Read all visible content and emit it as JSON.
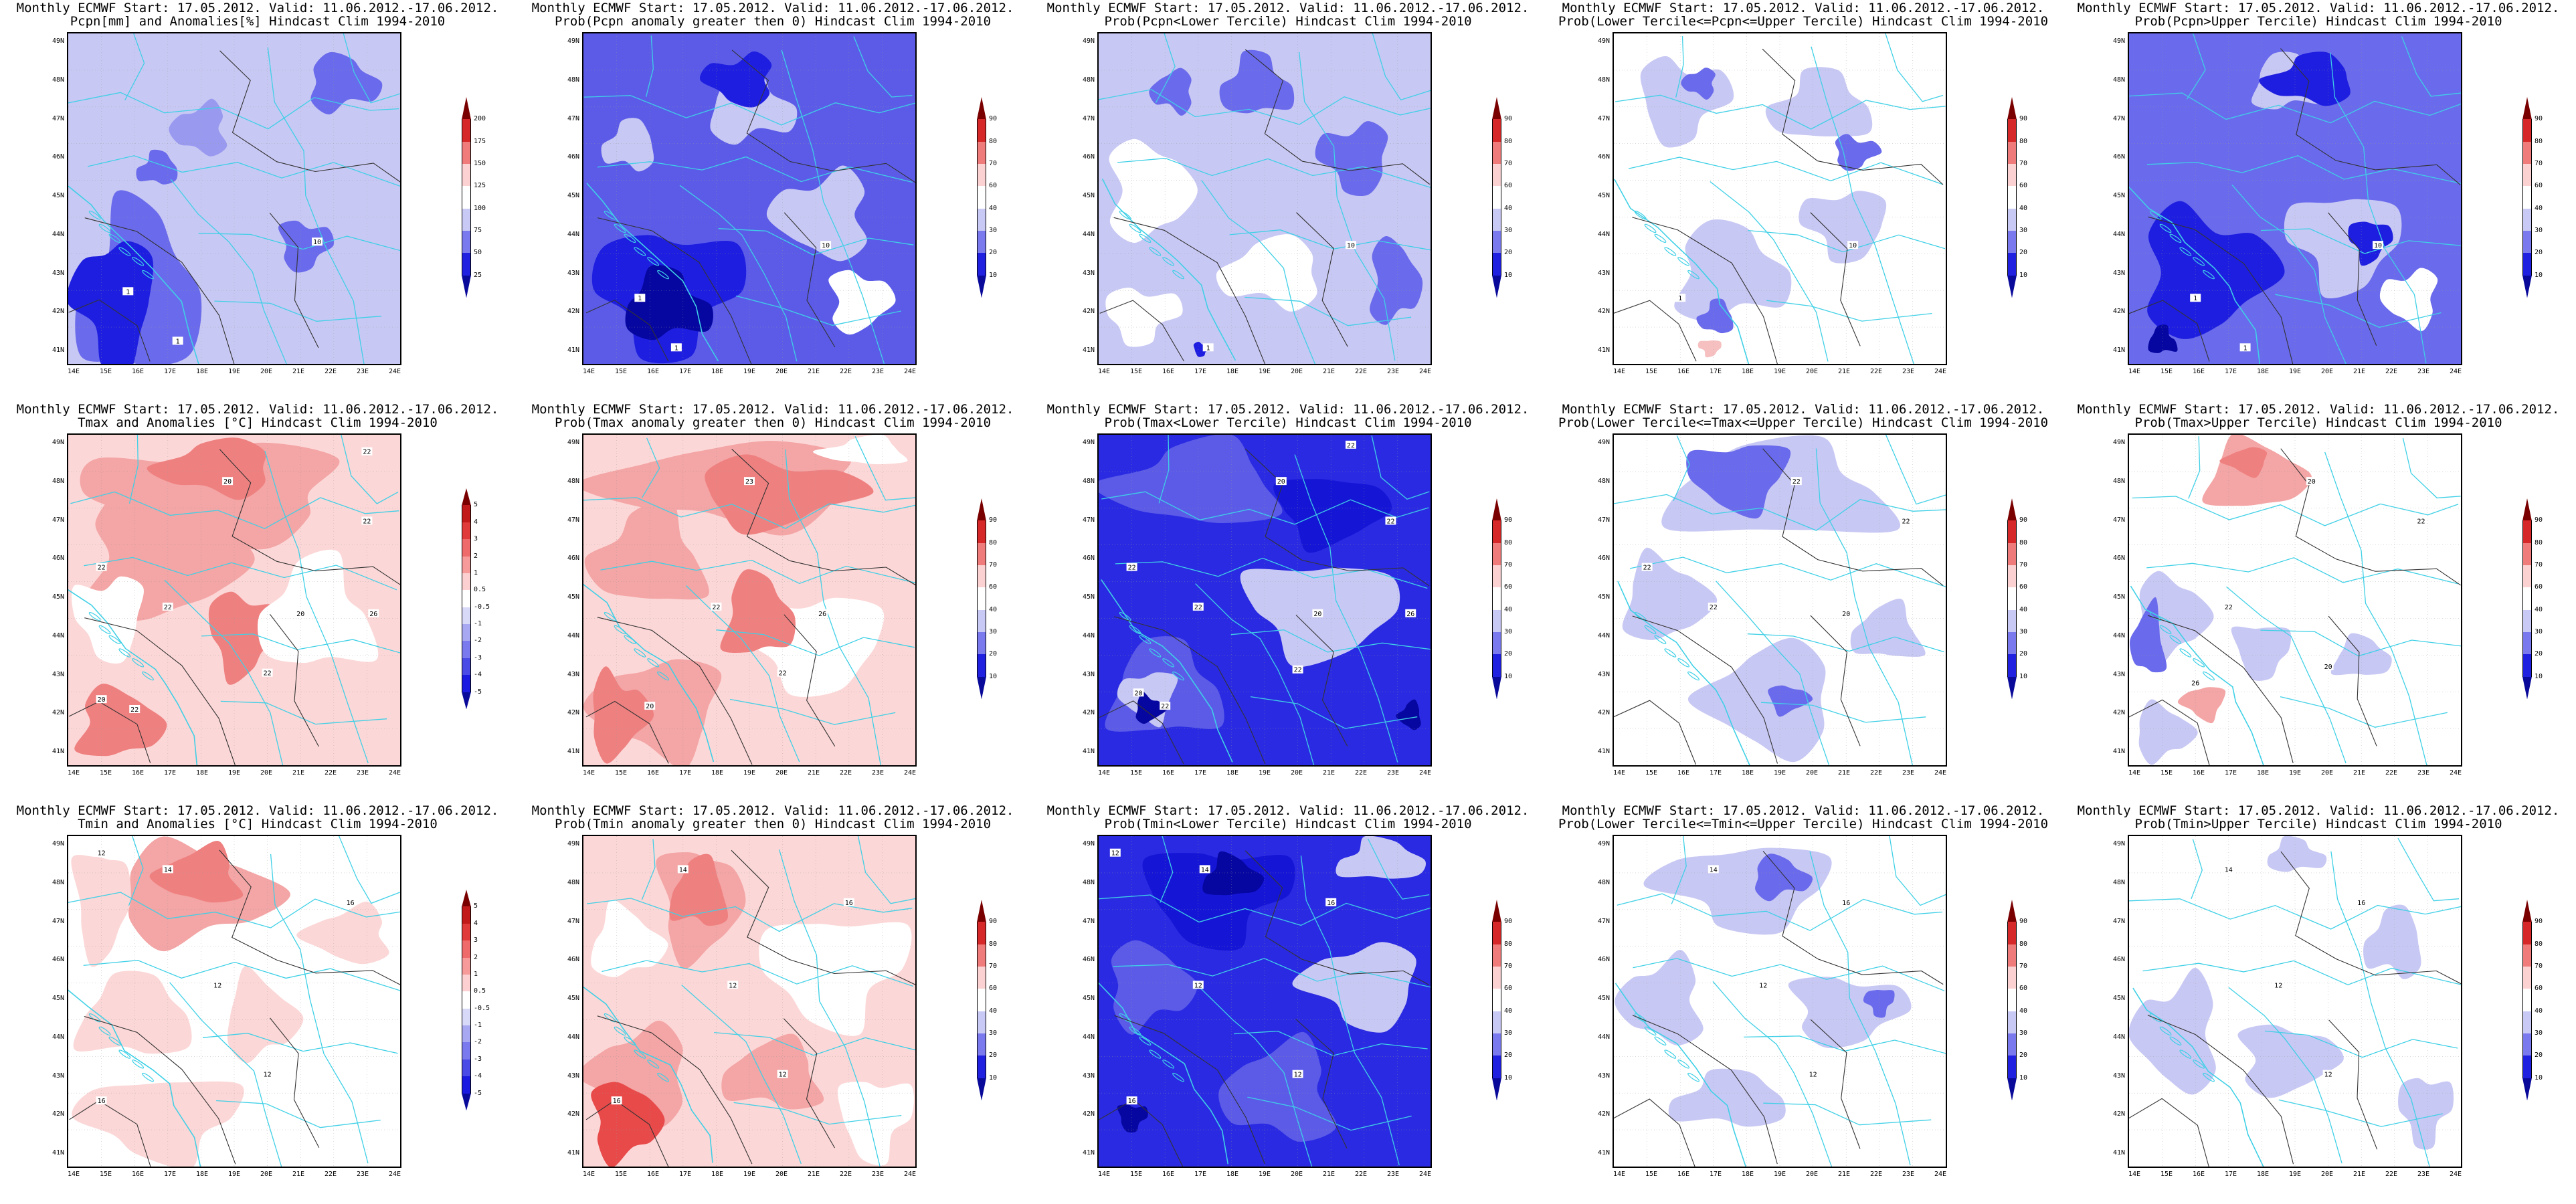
{
  "page": {
    "title_line1": "Monthly ECMWF Start: 17.05.2012. Valid: 11.06.2012.-17.06.2012.",
    "x_ticks": [
      "14E",
      "15E",
      "16E",
      "17E",
      "18E",
      "19E",
      "20E",
      "21E",
      "22E",
      "23E",
      "24E"
    ],
    "y_ticks": [
      "49N",
      "48N",
      "47N",
      "46N",
      "45N",
      "44N",
      "43N",
      "42N",
      "41N"
    ]
  },
  "legends": {
    "pcpn": [
      "200",
      "175",
      "150",
      "125",
      "100",
      "75",
      "50",
      "25"
    ],
    "temp": [
      "5",
      "4",
      "3",
      "2",
      "1",
      "0.5",
      "-0.5",
      "-1",
      "-2",
      "-3",
      "-4",
      "-5"
    ],
    "prob": [
      "90",
      "80",
      "70",
      "60",
      "40",
      "30",
      "20",
      "10"
    ]
  },
  "colors": {
    "blue_dark": "#0b0bd8",
    "blue_mid": "#5a5ae8",
    "blue_light": "#c9c9f5",
    "red_mid": "#f2a0a0",
    "red_light": "#fbdcdc",
    "country_border": "#3fd0e6",
    "contour": "#333333"
  },
  "panels": [
    {
      "id": "p11",
      "title_line2": "Pcpn[mm] and Anomalies[%] Hindcast Clim 1994-2010",
      "bg": "#c8c8f4",
      "legend": "pcpn",
      "blobs": [
        [
          "#6a6aec",
          0.0,
          0.48,
          0.42,
          0.62
        ],
        [
          "#1e1ee0",
          0.0,
          0.58,
          0.28,
          0.46
        ],
        [
          "#6a6aec",
          0.7,
          0.05,
          0.25,
          0.2
        ],
        [
          "#9999f0",
          0.3,
          0.2,
          0.2,
          0.18
        ],
        [
          "#6a6aec",
          0.62,
          0.55,
          0.18,
          0.18
        ],
        [
          "#6a6aec",
          0.2,
          0.35,
          0.14,
          0.12
        ]
      ],
      "clabels": [
        [
          "1",
          0.18,
          0.78
        ],
        [
          "1",
          0.33,
          0.93
        ],
        [
          "10",
          0.75,
          0.63
        ]
      ]
    },
    {
      "id": "p12",
      "title_line2": "Prob(Pcpn anomaly greater then 0) Hindcast Clim 1994-2010",
      "bg": "#5b5be8",
      "legend": "prob",
      "blobs": [
        [
          "#c8c8f4",
          0.35,
          0.1,
          0.3,
          0.25
        ],
        [
          "#c8c8f4",
          0.55,
          0.4,
          0.35,
          0.3
        ],
        [
          "#ffffff",
          0.72,
          0.7,
          0.22,
          0.22
        ],
        [
          "#c8c8f4",
          0.05,
          0.25,
          0.18,
          0.18
        ],
        [
          "#1e1ee0",
          0.0,
          0.55,
          0.5,
          0.45
        ],
        [
          "#0606a0",
          0.1,
          0.7,
          0.3,
          0.25
        ],
        [
          "#1e1ee0",
          0.35,
          0.05,
          0.25,
          0.18
        ]
      ],
      "clabels": [
        [
          "1",
          0.17,
          0.8
        ],
        [
          "1",
          0.28,
          0.95
        ],
        [
          "10",
          0.73,
          0.64
        ]
      ]
    },
    {
      "id": "p13",
      "title_line2": "Prob(Pcpn<Lower Tercile) Hindcast Clim 1994-2010",
      "bg": "#c8c8f4",
      "legend": "prob",
      "blobs": [
        [
          "#ffffff",
          0.0,
          0.3,
          0.3,
          0.35
        ],
        [
          "#ffffff",
          0.35,
          0.6,
          0.35,
          0.25
        ],
        [
          "#ffffff",
          0.0,
          0.75,
          0.25,
          0.2
        ],
        [
          "#6a6aec",
          0.35,
          0.05,
          0.25,
          0.22
        ],
        [
          "#6a6aec",
          0.65,
          0.25,
          0.25,
          0.25
        ],
        [
          "#6a6aec",
          0.8,
          0.6,
          0.18,
          0.3
        ],
        [
          "#6a6aec",
          0.15,
          0.1,
          0.15,
          0.15
        ],
        [
          "#1e1ee0",
          0.28,
          0.93,
          0.06,
          0.05
        ]
      ],
      "clabels": [
        [
          "1",
          0.33,
          0.95
        ],
        [
          "10",
          0.76,
          0.64
        ]
      ]
    },
    {
      "id": "p14",
      "title_line2": "Prob(Lower Tercile<=Pcpn<=Upper Tercile) Hindcast Clim 1994-2010",
      "bg": "#ffffff",
      "legend": "prob",
      "blobs": [
        [
          "#c8c8f4",
          0.05,
          0.05,
          0.3,
          0.3
        ],
        [
          "#c8c8f4",
          0.45,
          0.1,
          0.35,
          0.25
        ],
        [
          "#c8c8f4",
          0.55,
          0.45,
          0.3,
          0.25
        ],
        [
          "#c8c8f4",
          0.15,
          0.55,
          0.4,
          0.35
        ],
        [
          "#6a6aec",
          0.2,
          0.1,
          0.12,
          0.1
        ],
        [
          "#6a6aec",
          0.65,
          0.3,
          0.15,
          0.12
        ],
        [
          "#6a6aec",
          0.25,
          0.8,
          0.12,
          0.12
        ],
        [
          "#f6c0c0",
          0.25,
          0.92,
          0.08,
          0.06
        ]
      ],
      "clabels": [
        [
          "1",
          0.2,
          0.8
        ],
        [
          "10",
          0.72,
          0.64
        ]
      ]
    },
    {
      "id": "p15",
      "title_line2": "Prob(Pcpn>Upper Tercile) Hindcast Clim 1994-2010",
      "bg": "#6a6aec",
      "legend": "prob",
      "blobs": [
        [
          "#c8c8f4",
          0.45,
          0.45,
          0.4,
          0.35
        ],
        [
          "#c8c8f4",
          0.35,
          0.05,
          0.25,
          0.2
        ],
        [
          "#ffffff",
          0.75,
          0.7,
          0.2,
          0.2
        ],
        [
          "#1e1ee0",
          0.0,
          0.5,
          0.45,
          0.45
        ],
        [
          "#1e1ee0",
          0.4,
          0.05,
          0.3,
          0.18
        ],
        [
          "#1e1ee0",
          0.65,
          0.55,
          0.15,
          0.15
        ],
        [
          "#0606a0",
          0.05,
          0.88,
          0.1,
          0.1
        ]
      ],
      "clabels": [
        [
          "1",
          0.2,
          0.8
        ],
        [
          "1",
          0.35,
          0.95
        ],
        [
          "10",
          0.75,
          0.64
        ]
      ]
    },
    {
      "id": "p21",
      "title_line2": "Tmax and Anomalies [°C] Hindcast Clim 1994-2010",
      "bg": "#fcd7d7",
      "legend": "temp",
      "blobs": [
        [
          "#f4a5a5",
          0.0,
          0.0,
          0.9,
          0.35
        ],
        [
          "#f4a5a5",
          0.0,
          0.15,
          0.55,
          0.45
        ],
        [
          "#ef8080",
          0.25,
          0.0,
          0.4,
          0.2
        ],
        [
          "#ef8080",
          0.4,
          0.45,
          0.25,
          0.3
        ],
        [
          "#ffffff",
          0.55,
          0.35,
          0.4,
          0.4
        ],
        [
          "#ffffff",
          0.0,
          0.4,
          0.25,
          0.3
        ],
        [
          "#ef8080",
          0.0,
          0.75,
          0.3,
          0.25
        ]
      ],
      "clabels": [
        [
          "22",
          0.9,
          0.05
        ],
        [
          "20",
          0.48,
          0.14
        ],
        [
          "22",
          0.9,
          0.26
        ],
        [
          "22",
          0.1,
          0.4
        ],
        [
          "22",
          0.3,
          0.52
        ],
        [
          "20",
          0.7,
          0.54
        ],
        [
          "26",
          0.92,
          0.54
        ],
        [
          "22",
          0.2,
          0.83
        ],
        [
          "20",
          0.1,
          0.8
        ],
        [
          "22",
          0.6,
          0.72
        ]
      ]
    },
    {
      "id": "p22",
      "title_line2": "Prob(Tmax anomaly greater then 0) Hindcast Clim 1994-2010",
      "bg": "#fcd7d7",
      "legend": "prob",
      "blobs": [
        [
          "#f4a5a5",
          0.0,
          0.0,
          0.9,
          0.3
        ],
        [
          "#ef8080",
          0.3,
          0.05,
          0.55,
          0.25
        ],
        [
          "#f4a5a5",
          0.0,
          0.2,
          0.4,
          0.35
        ],
        [
          "#ffffff",
          0.45,
          0.45,
          0.5,
          0.35
        ],
        [
          "#ef8080",
          0.4,
          0.4,
          0.25,
          0.3
        ],
        [
          "#f4a5a5",
          0.0,
          0.65,
          0.45,
          0.35
        ],
        [
          "#ef8080",
          0.0,
          0.7,
          0.2,
          0.3
        ],
        [
          "#ffffff",
          0.7,
          0.0,
          0.3,
          0.1
        ]
      ],
      "clabels": [
        [
          "23",
          0.5,
          0.14
        ],
        [
          "22",
          0.4,
          0.52
        ],
        [
          "20",
          0.2,
          0.82
        ],
        [
          "26",
          0.72,
          0.54
        ],
        [
          "22",
          0.6,
          0.72
        ]
      ]
    },
    {
      "id": "p23",
      "title_line2": "Prob(Tmax<Lower Tercile) Hindcast Clim 1994-2010",
      "bg": "#2a2ae2",
      "legend": "prob",
      "blobs": [
        [
          "#5b5be8",
          0.0,
          0.0,
          0.6,
          0.3
        ],
        [
          "#c8c8f4",
          0.4,
          0.35,
          0.55,
          0.35
        ],
        [
          "#5b5be8",
          0.0,
          0.6,
          0.4,
          0.35
        ],
        [
          "#c8c8f4",
          0.05,
          0.7,
          0.2,
          0.18
        ],
        [
          "#0606a0",
          0.1,
          0.78,
          0.1,
          0.1
        ],
        [
          "#0606a0",
          0.9,
          0.8,
          0.08,
          0.1
        ],
        [
          "#1515d6",
          0.5,
          0.1,
          0.4,
          0.25
        ]
      ],
      "clabels": [
        [
          "22",
          0.76,
          0.03
        ],
        [
          "20",
          0.55,
          0.14
        ],
        [
          "22",
          0.88,
          0.26
        ],
        [
          "22",
          0.1,
          0.4
        ],
        [
          "22",
          0.3,
          0.52
        ],
        [
          "20",
          0.66,
          0.54
        ],
        [
          "26",
          0.94,
          0.54
        ],
        [
          "22",
          0.2,
          0.82
        ],
        [
          "20",
          0.12,
          0.78
        ],
        [
          "22",
          0.6,
          0.71
        ]
      ]
    },
    {
      "id": "p24",
      "title_line2": "Prob(Lower Tercile<=Tmax<=Upper Tercile) Hindcast Clim 1994-2010",
      "bg": "#ffffff",
      "legend": "prob",
      "blobs": [
        [
          "#c8c8f4",
          0.1,
          0.0,
          0.8,
          0.35
        ],
        [
          "#6a6aec",
          0.2,
          0.0,
          0.35,
          0.25
        ],
        [
          "#c8c8f4",
          0.0,
          0.35,
          0.3,
          0.3
        ],
        [
          "#c8c8f4",
          0.25,
          0.6,
          0.45,
          0.4
        ],
        [
          "#6a6aec",
          0.45,
          0.75,
          0.15,
          0.1
        ],
        [
          "#c8c8f4",
          0.7,
          0.5,
          0.25,
          0.2
        ]
      ],
      "clabels": [
        [
          "22",
          0.55,
          0.14
        ],
        [
          "22",
          0.88,
          0.26
        ],
        [
          "22",
          0.1,
          0.4
        ],
        [
          "22",
          0.3,
          0.52
        ],
        [
          "20",
          0.7,
          0.54
        ]
      ]
    },
    {
      "id": "p25",
      "title_line2": "Prob(Tmax>Upper Tercile) Hindcast Clim 1994-2010",
      "bg": "#ffffff",
      "legend": "prob",
      "blobs": [
        [
          "#f4a5a5",
          0.2,
          0.0,
          0.35,
          0.25
        ],
        [
          "#ef8080",
          0.28,
          0.03,
          0.15,
          0.1
        ],
        [
          "#c8c8f4",
          0.0,
          0.4,
          0.25,
          0.3
        ],
        [
          "#6a6aec",
          0.0,
          0.5,
          0.12,
          0.25
        ],
        [
          "#c8c8f4",
          0.3,
          0.55,
          0.2,
          0.2
        ],
        [
          "#c8c8f4",
          0.6,
          0.6,
          0.2,
          0.15
        ],
        [
          "#f4a5a5",
          0.15,
          0.75,
          0.15,
          0.12
        ],
        [
          "#c8c8f4",
          0.0,
          0.8,
          0.2,
          0.2
        ]
      ],
      "clabels": [
        [
          "26",
          0.2,
          0.75
        ],
        [
          "20",
          0.55,
          0.14
        ],
        [
          "22",
          0.88,
          0.26
        ],
        [
          "22",
          0.3,
          0.52
        ],
        [
          "20",
          0.6,
          0.7
        ]
      ]
    },
    {
      "id": "p31",
      "title_line2": "Tmin and Anomalies [°C] Hindcast Clim 1994-2010",
      "bg": "#ffffff",
      "legend": "temp",
      "blobs": [
        [
          "#f4a5a5",
          0.1,
          0.0,
          0.55,
          0.35
        ],
        [
          "#ef8080",
          0.25,
          0.02,
          0.3,
          0.2
        ],
        [
          "#fcd7d7",
          0.0,
          0.0,
          0.2,
          0.4
        ],
        [
          "#fcd7d7",
          0.0,
          0.4,
          0.4,
          0.3
        ],
        [
          "#fcd7d7",
          0.0,
          0.7,
          0.55,
          0.3
        ],
        [
          "#fcd7d7",
          0.45,
          0.4,
          0.25,
          0.3
        ],
        [
          "#fcd7d7",
          0.7,
          0.2,
          0.3,
          0.2
        ]
      ],
      "clabels": [
        [
          "12",
          0.1,
          0.05
        ],
        [
          "14",
          0.3,
          0.1
        ],
        [
          "16",
          0.85,
          0.2
        ],
        [
          "12",
          0.45,
          0.45
        ],
        [
          "12",
          0.6,
          0.72
        ],
        [
          "16",
          0.1,
          0.8
        ]
      ]
    },
    {
      "id": "p32",
      "title_line2": "Prob(Tmin anomaly greater then 0) Hindcast Clim 1994-2010",
      "bg": "#fcd7d7",
      "legend": "prob",
      "blobs": [
        [
          "#f4a5a5",
          0.2,
          0.0,
          0.3,
          0.4
        ],
        [
          "#ef8080",
          0.25,
          0.05,
          0.2,
          0.25
        ],
        [
          "#ffffff",
          0.5,
          0.2,
          0.5,
          0.4
        ],
        [
          "#ffffff",
          0.0,
          0.2,
          0.25,
          0.25
        ],
        [
          "#f4a5a5",
          0.0,
          0.55,
          0.35,
          0.35
        ],
        [
          "#e84a4a",
          0.0,
          0.72,
          0.25,
          0.28
        ],
        [
          "#f4a5a5",
          0.4,
          0.6,
          0.35,
          0.25
        ],
        [
          "#ffffff",
          0.75,
          0.7,
          0.25,
          0.3
        ]
      ],
      "clabels": [
        [
          "14",
          0.3,
          0.1
        ],
        [
          "16",
          0.8,
          0.2
        ],
        [
          "12",
          0.45,
          0.45
        ],
        [
          "12",
          0.6,
          0.72
        ],
        [
          "16",
          0.1,
          0.8
        ]
      ]
    },
    {
      "id": "p33",
      "title_line2": "Prob(Tmin<Lower Tercile) Hindcast Clim 1994-2010",
      "bg": "#2a2ae2",
      "legend": "prob",
      "blobs": [
        [
          "#1515d6",
          0.1,
          0.0,
          0.5,
          0.35
        ],
        [
          "#0606a0",
          0.3,
          0.05,
          0.2,
          0.15
        ],
        [
          "#c8c8f4",
          0.6,
          0.3,
          0.4,
          0.3
        ],
        [
          "#5b5be8",
          0.0,
          0.3,
          0.3,
          0.3
        ],
        [
          "#5b5be8",
          0.35,
          0.6,
          0.4,
          0.35
        ],
        [
          "#0606a0",
          0.05,
          0.8,
          0.1,
          0.1
        ],
        [
          "#c8c8f4",
          0.7,
          0.0,
          0.3,
          0.15
        ]
      ],
      "clabels": [
        [
          "12",
          0.05,
          0.05
        ],
        [
          "14",
          0.32,
          0.1
        ],
        [
          "16",
          0.7,
          0.2
        ],
        [
          "12",
          0.3,
          0.45
        ],
        [
          "12",
          0.6,
          0.72
        ],
        [
          "16",
          0.1,
          0.8
        ]
      ]
    },
    {
      "id": "p34",
      "title_line2": "Prob(Lower Tercile<=Tmin<=Upper Tercile) Hindcast Clim 1994-2010",
      "bg": "#ffffff",
      "legend": "prob",
      "blobs": [
        [
          "#c8c8f4",
          0.1,
          0.0,
          0.6,
          0.3
        ],
        [
          "#6a6aec",
          0.4,
          0.05,
          0.2,
          0.15
        ],
        [
          "#c8c8f4",
          0.0,
          0.35,
          0.3,
          0.3
        ],
        [
          "#c8c8f4",
          0.5,
          0.4,
          0.4,
          0.25
        ],
        [
          "#c8c8f4",
          0.15,
          0.7,
          0.4,
          0.2
        ],
        [
          "#6a6aec",
          0.75,
          0.45,
          0.1,
          0.1
        ]
      ],
      "clabels": [
        [
          "14",
          0.3,
          0.1
        ],
        [
          "16",
          0.7,
          0.2
        ],
        [
          "12",
          0.45,
          0.45
        ],
        [
          "12",
          0.6,
          0.72
        ]
      ]
    },
    {
      "id": "p35",
      "title_line2": "Prob(Tmin>Upper Tercile) Hindcast Clim 1994-2010",
      "bg": "#ffffff",
      "legend": "prob",
      "blobs": [
        [
          "#c8c8f4",
          0.0,
          0.4,
          0.3,
          0.4
        ],
        [
          "#c8c8f4",
          0.3,
          0.55,
          0.35,
          0.25
        ],
        [
          "#c8c8f4",
          0.7,
          0.2,
          0.2,
          0.25
        ],
        [
          "#c8c8f4",
          0.8,
          0.7,
          0.18,
          0.25
        ],
        [
          "#c8c8f4",
          0.4,
          0.0,
          0.2,
          0.12
        ]
      ],
      "clabels": [
        [
          "14",
          0.3,
          0.1
        ],
        [
          "16",
          0.7,
          0.2
        ],
        [
          "12",
          0.45,
          0.45
        ],
        [
          "12",
          0.6,
          0.72
        ]
      ]
    }
  ]
}
